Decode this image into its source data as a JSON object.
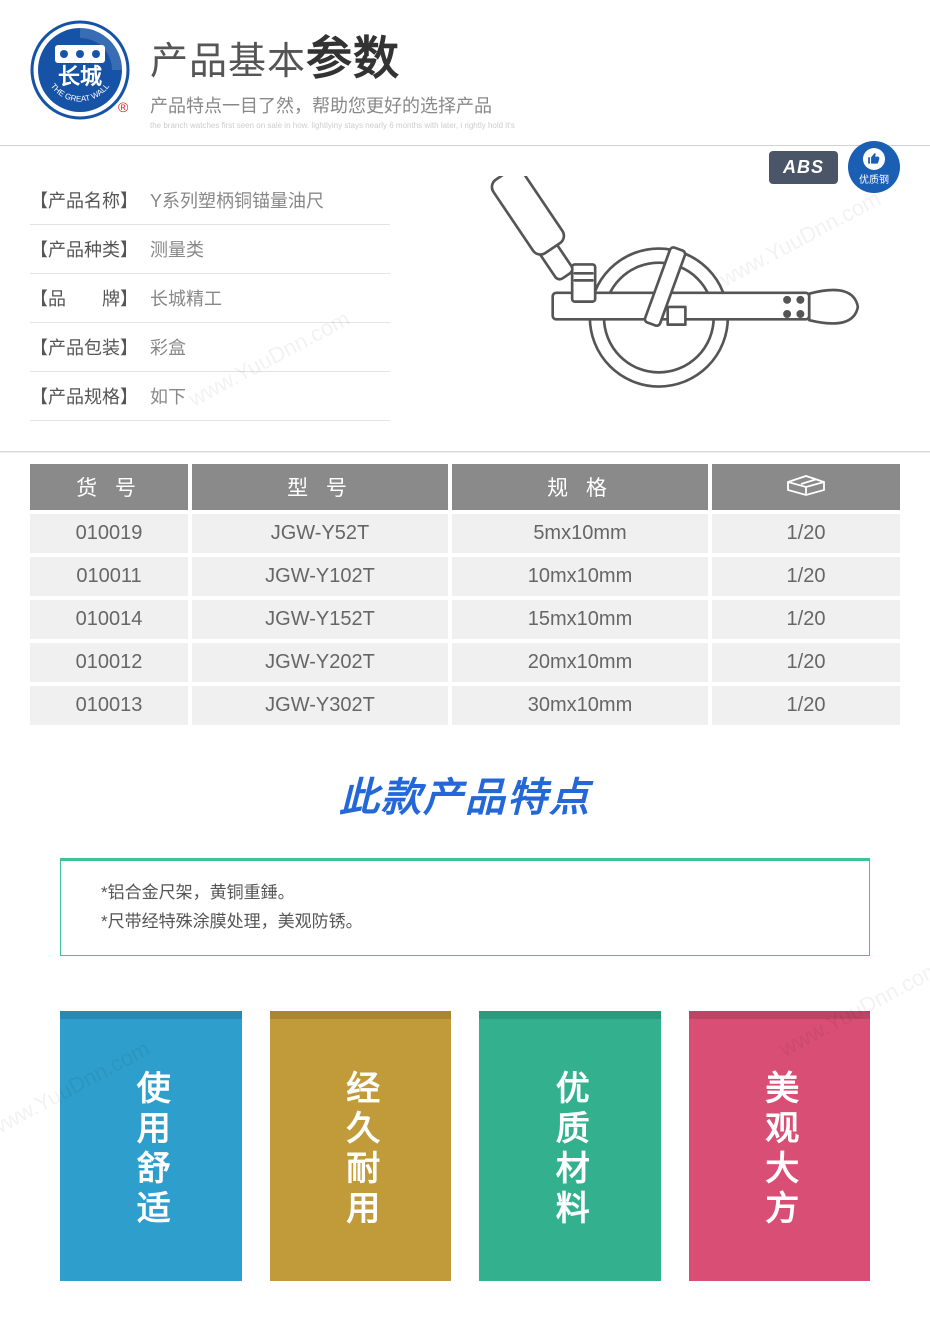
{
  "header": {
    "title_prefix": "产品基本",
    "title_bold": "参数",
    "subtitle": "产品特点一目了然，帮助您更好的选择产品",
    "tinytext": "the branch watches first seen on sale in how. lightlyiny stays nearly 6 months with later, i rightly hold it's",
    "logo_text_top": "长城",
    "logo_text_bottom": "THE GREAT WALL",
    "logo_blue": "#1653a6",
    "logo_red": "#d8282a"
  },
  "attributes": [
    {
      "label": "【产品名称】",
      "value": "Y系列塑柄铜锚量油尺"
    },
    {
      "label": "【产品种类】",
      "value": "测量类"
    },
    {
      "label": "【品　　牌】",
      "value": "长城精工"
    },
    {
      "label": "【产品包装】",
      "value": "彩盒"
    },
    {
      "label": "【产品规格】",
      "value": "如下"
    }
  ],
  "badges": {
    "abs": "ABS",
    "steel_label": "优质钢",
    "steel_bg": "#1a5fb4"
  },
  "table": {
    "headers": [
      "货 号",
      "型 号",
      "规 格",
      ""
    ],
    "header_bg": "#8a8a8a",
    "cell_bg": "#f0f0f0",
    "cell_color": "#666666",
    "rows": [
      [
        "010019",
        "JGW-Y52T",
        "5mx10mm",
        "1/20"
      ],
      [
        "010011",
        "JGW-Y102T",
        "10mx10mm",
        "1/20"
      ],
      [
        "010014",
        "JGW-Y152T",
        "15mx10mm",
        "1/20"
      ],
      [
        "010012",
        "JGW-Y202T",
        "20mx10mm",
        "1/20"
      ],
      [
        "010013",
        "JGW-Y302T",
        "30mx10mm",
        "1/20"
      ]
    ]
  },
  "features_title": "此款产品特点",
  "features_title_color": "#2468d8",
  "features_box": {
    "border_color": "#3cc39a",
    "line1": "*铝合金尺架，黄铜重錘。",
    "line2": "*尺带经特殊涂膜处理，美观防锈。"
  },
  "pillars": [
    {
      "text": "使用舒适",
      "color": "#2e9ecc"
    },
    {
      "text": "经久耐用",
      "color": "#c19a3a"
    },
    {
      "text": "优质材料",
      "color": "#33b08e"
    },
    {
      "text": "美观大方",
      "color": "#d84e74"
    }
  ],
  "watermark_text": "www.YuuDnn.com"
}
